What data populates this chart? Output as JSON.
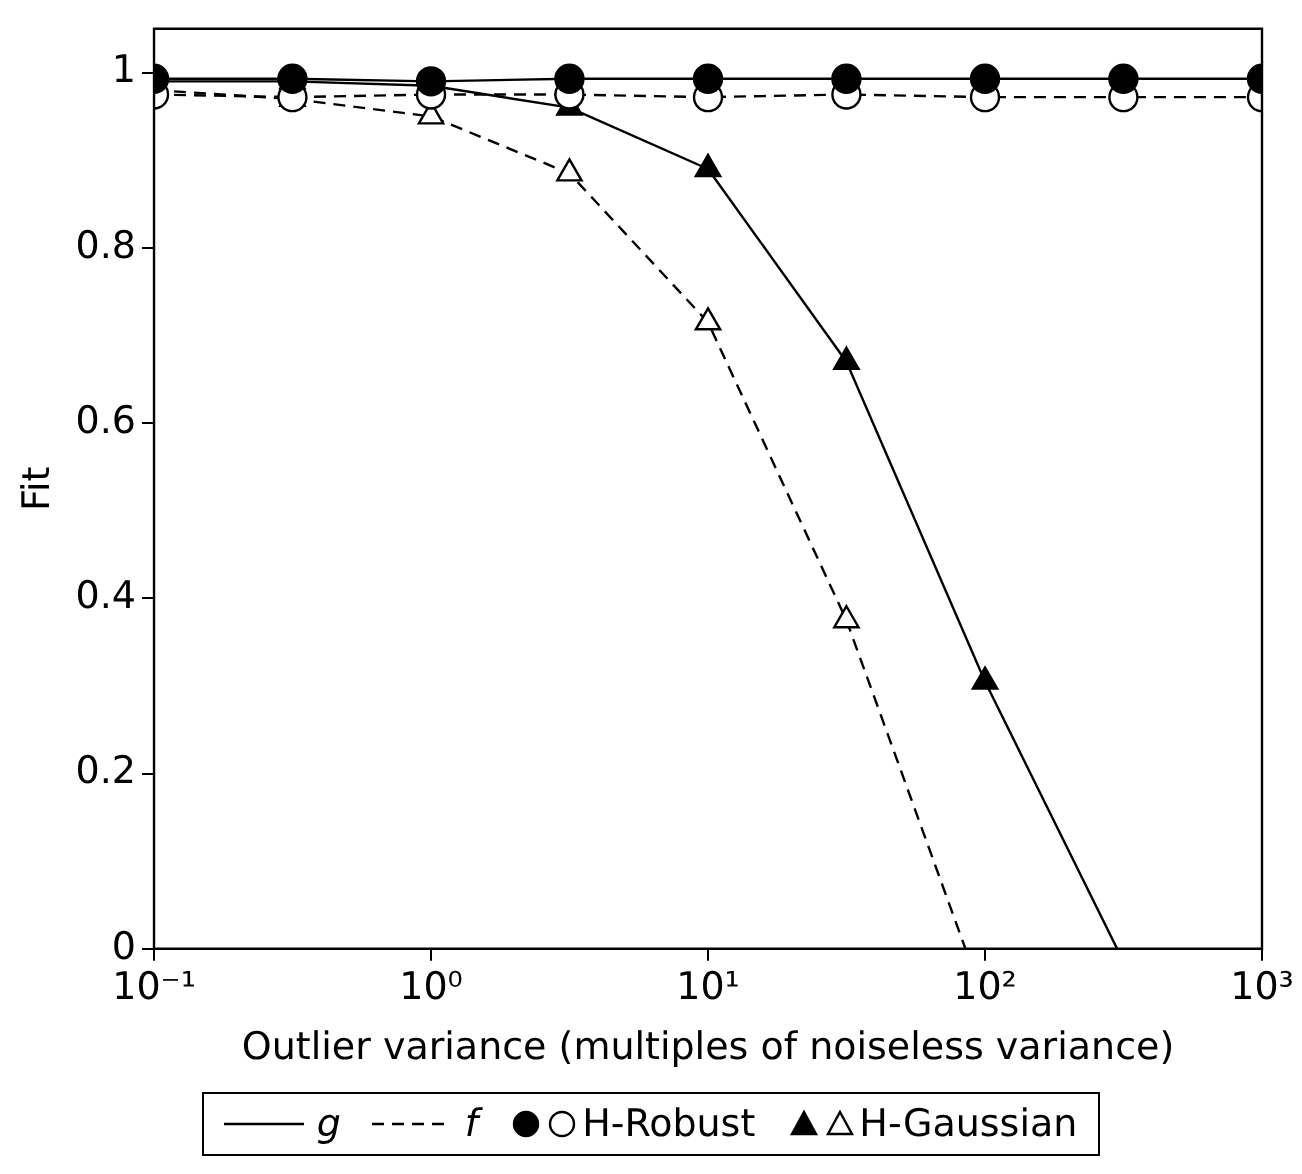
{
  "chart_data": {
    "type": "line",
    "xlabel": "Outlier variance (multiples of noiseless variance)",
    "ylabel": "Fit",
    "x": [
      0.1,
      0.316,
      1,
      3.16,
      10,
      31.6,
      100,
      316,
      1000
    ],
    "log": "x",
    "xlim": [
      0.1,
      1000
    ],
    "xticks": [
      {
        "value": 0.1,
        "label": "10⁻¹"
      },
      {
        "value": 1,
        "label": "10⁰"
      },
      {
        "value": 10,
        "label": "10¹"
      },
      {
        "value": 100,
        "label": "10²"
      },
      {
        "value": 1000,
        "label": "10³"
      }
    ],
    "ylim": [
      0,
      1.05
    ],
    "yticks": [
      0,
      0.2,
      0.4,
      0.6,
      0.8,
      1
    ],
    "grid": false,
    "legend": "bottom",
    "annotations": [
      "g",
      "f"
    ],
    "series": [
      {
        "color": "#000000",
        "marker": "circle",
        "line_style": "solid",
        "values": [
          0.993,
          0.993,
          0.99,
          0.993,
          0.993,
          0.993,
          0.993,
          0.993,
          0.993
        ]
      },
      {
        "name": "H-Robust",
        "color": "#000000",
        "marker": "circle",
        "line_style": "dashed",
        "values": [
          0.975,
          0.972,
          0.975,
          0.975,
          0.972,
          0.975,
          0.972,
          0.972,
          0.972
        ]
      },
      {
        "color": "#000000",
        "marker": "triangle",
        "line_style": "solid",
        "x": [
          0.1,
          0.316,
          1,
          3.16,
          10,
          31.6,
          100,
          300
        ],
        "values": [
          0.99,
          0.99,
          0.985,
          0.96,
          0.89,
          0.67,
          0.305,
          0
        ]
      },
      {
        "name": "H-Gaussian",
        "color": "#000000",
        "marker": "triangle",
        "line_style": "dashed",
        "x": [
          0.1,
          0.316,
          1,
          3.16,
          10,
          31.6,
          85
        ],
        "values": [
          0.98,
          0.97,
          0.95,
          0.885,
          0.715,
          0.375,
          0
        ]
      }
    ]
  }
}
